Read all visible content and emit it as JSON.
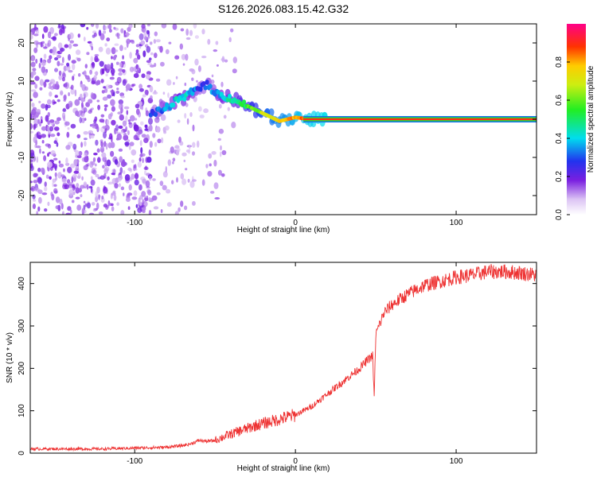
{
  "title": "S126.2026.083.15.42.G32",
  "chart_data": [
    {
      "type": "heatmap",
      "xlabel": "Height of straight line (km)",
      "ylabel": "Frequency (Hz)",
      "xlim": [
        -165,
        150
      ],
      "ylim": [
        -25,
        25
      ],
      "xticks": [
        -100,
        0,
        100
      ],
      "yticks": [
        20,
        10,
        0,
        -10,
        -20
      ],
      "colorbar": {
        "label": "Normalized spectral amplitude",
        "range": [
          0,
          1
        ],
        "ticks": [
          0.0,
          0.2,
          0.4,
          0.6,
          0.8
        ]
      },
      "ridge": [
        {
          "x": -90,
          "f": 1.5,
          "amp": 0.25
        },
        {
          "x": -85,
          "f": 2.0,
          "amp": 0.3
        },
        {
          "x": -80,
          "f": 3.0,
          "amp": 0.35
        },
        {
          "x": -75,
          "f": 4.5,
          "amp": 0.4
        },
        {
          "x": -70,
          "f": 5.5,
          "amp": 0.42
        },
        {
          "x": -65,
          "f": 7.0,
          "amp": 0.38
        },
        {
          "x": -60,
          "f": 8.5,
          "amp": 0.3
        },
        {
          "x": -55,
          "f": 9.0,
          "amp": 0.3
        },
        {
          "x": -50,
          "f": 7.0,
          "amp": 0.35
        },
        {
          "x": -45,
          "f": 6.0,
          "amp": 0.4
        },
        {
          "x": -40,
          "f": 5.5,
          "amp": 0.45
        },
        {
          "x": -35,
          "f": 4.5,
          "amp": 0.48
        },
        {
          "x": -30,
          "f": 3.5,
          "amp": 0.55
        },
        {
          "x": -25,
          "f": 2.5,
          "amp": 0.6
        },
        {
          "x": -20,
          "f": 1.5,
          "amp": 0.68
        },
        {
          "x": -15,
          "f": 0.5,
          "amp": 0.72
        },
        {
          "x": -10,
          "f": -0.5,
          "amp": 0.75
        },
        {
          "x": -5,
          "f": 0.0,
          "amp": 0.78
        },
        {
          "x": 0,
          "f": 0.5,
          "amp": 0.82
        },
        {
          "x": 5,
          "f": 0.2,
          "amp": 0.85
        },
        {
          "x": 20,
          "f": 0.0,
          "amp": 0.9
        },
        {
          "x": 150,
          "f": 0.0,
          "amp": 0.92
        }
      ]
    },
    {
      "type": "line",
      "xlabel": "Height of straight line (km)",
      "ylabel": "SNR (10 * v/v)",
      "xlim": [
        -165,
        150
      ],
      "ylim": [
        0,
        450
      ],
      "xticks": [
        -100,
        0,
        100
      ],
      "yticks": [
        0,
        100,
        200,
        300,
        400
      ],
      "color": "#ee3333",
      "series": [
        {
          "x": [
            -165,
            -140,
            -120,
            -100,
            -80,
            -70,
            -65,
            -60,
            -55,
            -50,
            -45,
            -40,
            -35,
            -30,
            -25,
            -20,
            -15,
            -10,
            -5,
            0,
            5,
            10,
            15,
            20,
            25,
            30,
            35,
            40,
            45,
            48,
            49,
            50,
            52,
            55,
            60,
            70,
            80,
            90,
            100,
            110,
            120,
            130,
            140,
            150
          ],
          "y": [
            10,
            10,
            10,
            12,
            14,
            18,
            22,
            30,
            28,
            30,
            38,
            45,
            52,
            58,
            65,
            70,
            75,
            80,
            85,
            90,
            100,
            110,
            125,
            140,
            155,
            170,
            185,
            200,
            220,
            230,
            130,
            280,
            300,
            330,
            350,
            375,
            395,
            405,
            415,
            420,
            428,
            428,
            425,
            420
          ]
        }
      ]
    }
  ]
}
